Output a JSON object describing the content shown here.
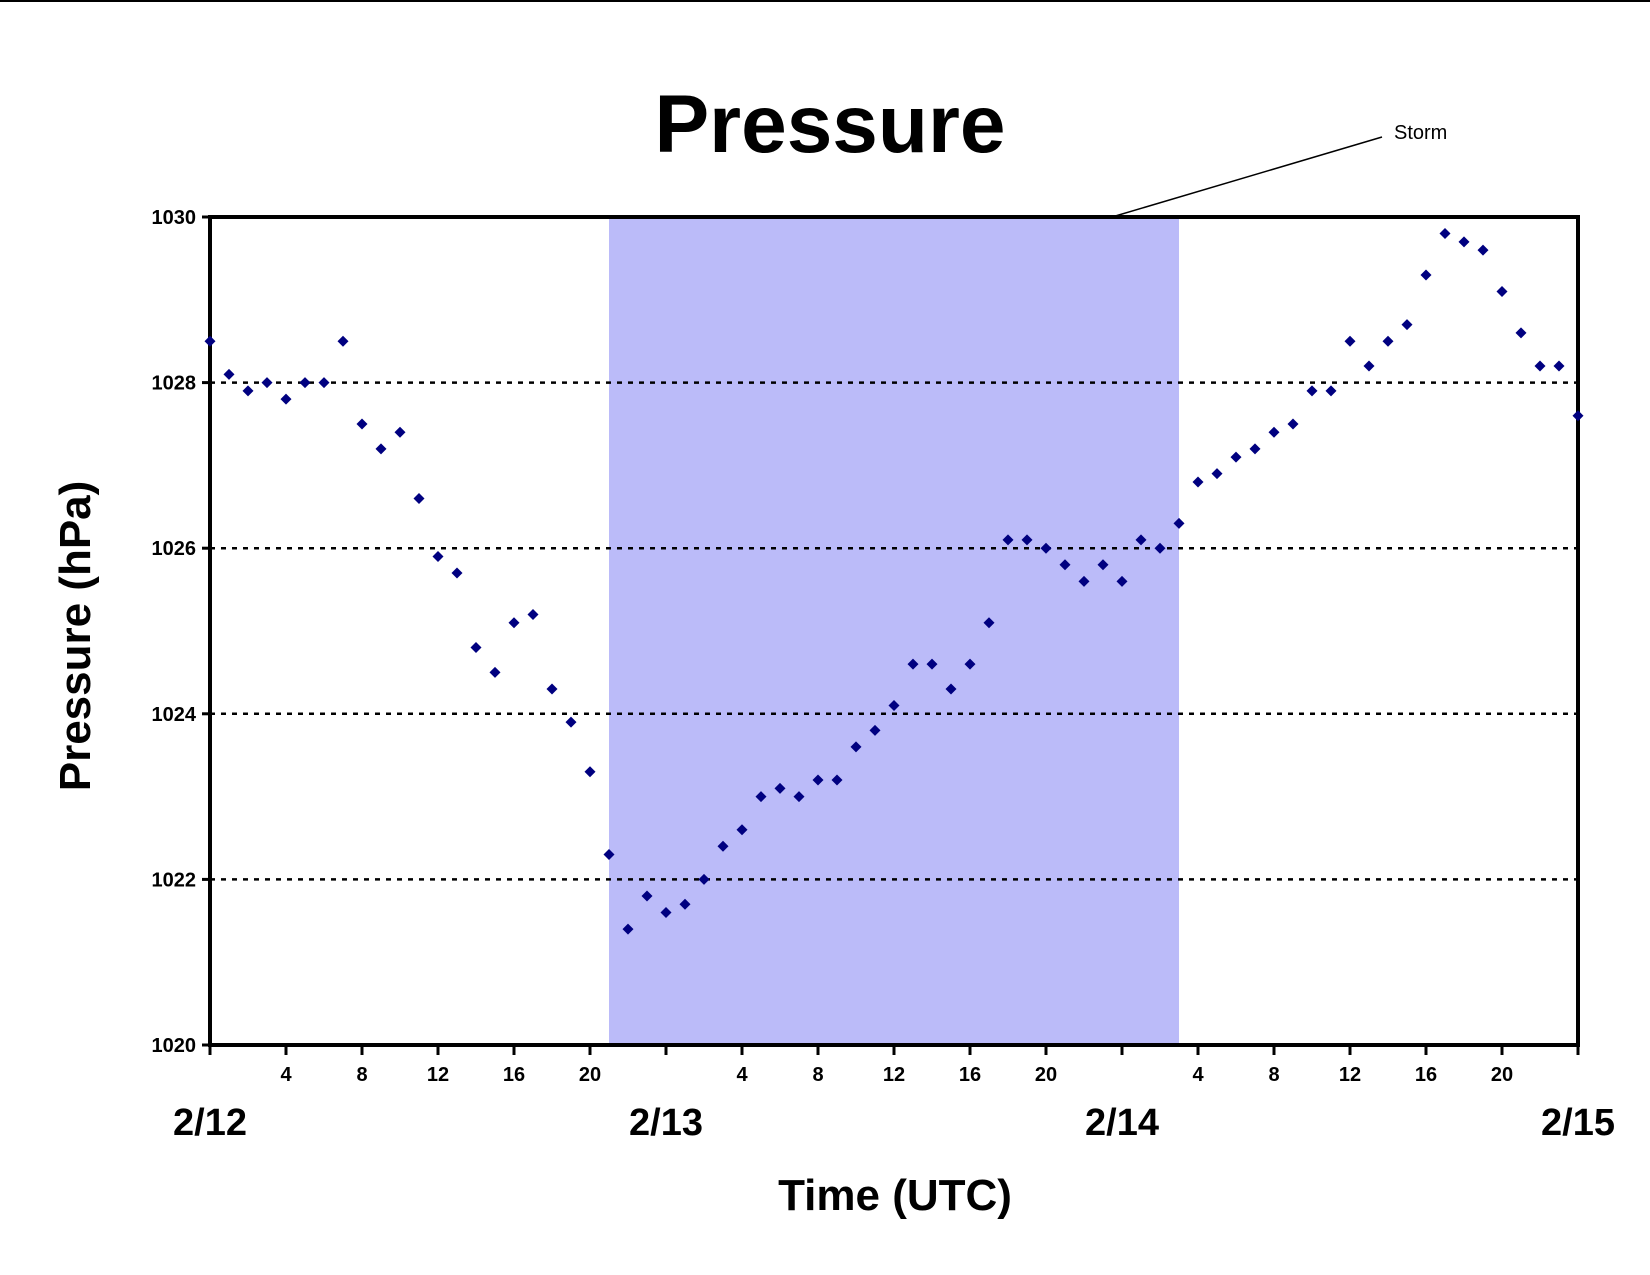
{
  "chart_data": {
    "type": "scatter",
    "title": "Pressure",
    "xlabel": "Time (UTC)",
    "ylabel": "Pressure (hPa)",
    "ylim": [
      1020,
      1030
    ],
    "xlim_hours": [
      0,
      72
    ],
    "yticks": [
      "1020",
      "1022",
      "1024",
      "1026",
      "1028",
      "1030"
    ],
    "gridlines": "dotted horizontal",
    "xticks_hours": [
      4,
      8,
      12,
      16,
      20,
      28,
      32,
      36,
      40,
      44,
      52,
      56,
      60,
      64,
      68
    ],
    "xtick_labels": [
      "4",
      "8",
      "12",
      "16",
      "20",
      "4",
      "8",
      "12",
      "16",
      "20",
      "4",
      "8",
      "12",
      "16",
      "20"
    ],
    "day_labels": [
      {
        "hour": 0,
        "label": "2/12"
      },
      {
        "hour": 24,
        "label": "2/13"
      },
      {
        "hour": 48,
        "label": "2/14"
      },
      {
        "hour": 72,
        "label": "2/15"
      }
    ],
    "highlight": {
      "label": "Storm",
      "start_hour": 21,
      "end_hour": 51,
      "color": "#bbbbf9"
    },
    "marker_color": "#000080",
    "series": [
      {
        "x": [
          0,
          1,
          2,
          3,
          4,
          5,
          6,
          7,
          8,
          9,
          10,
          11,
          12,
          13,
          14,
          15,
          16,
          17,
          18,
          19,
          20,
          21,
          22,
          23,
          24,
          25,
          26,
          27,
          28,
          29,
          30,
          31,
          32,
          33,
          34,
          35,
          36,
          37,
          38,
          39,
          40,
          41,
          42,
          43,
          44,
          45,
          46,
          47,
          48,
          49,
          50,
          51,
          52,
          53,
          54,
          55,
          56,
          57,
          58,
          59,
          60,
          61,
          62,
          63,
          64,
          65,
          66,
          67,
          68,
          69,
          70,
          71,
          72
        ],
        "y": [
          1028.5,
          1028.1,
          1027.9,
          1028.0,
          1027.8,
          1028.0,
          1028.0,
          1028.5,
          1027.5,
          1027.2,
          1027.4,
          1026.6,
          1025.9,
          1025.7,
          1024.8,
          1024.5,
          1025.1,
          1025.2,
          1024.3,
          1023.9,
          1023.3,
          1022.3,
          1021.4,
          1021.8,
          1021.6,
          1021.7,
          1022.0,
          1022.4,
          1022.6,
          1023.0,
          1023.1,
          1023.0,
          1023.2,
          1023.2,
          1023.6,
          1023.8,
          1024.1,
          1024.6,
          1024.6,
          1024.3,
          1024.6,
          1025.1,
          1026.1,
          1026.1,
          1026.0,
          1025.8,
          1025.6,
          1025.8,
          1025.6,
          1026.1,
          1026.0,
          1026.3,
          1026.8,
          1026.9,
          1027.1,
          1027.2,
          1027.4,
          1027.5,
          1027.9,
          1027.9,
          1028.5,
          1028.2,
          1028.5,
          1028.7,
          1029.3,
          1029.8,
          1029.7,
          1029.6,
          1029.1,
          1028.6,
          1028.2,
          1028.2,
          1027.6
        ]
      }
    ]
  }
}
